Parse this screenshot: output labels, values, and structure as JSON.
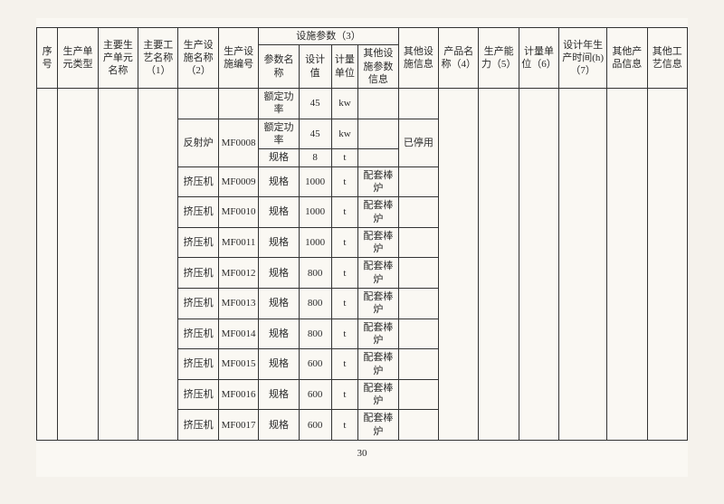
{
  "page_number": "30",
  "header": {
    "group_title": "设施参数（3）",
    "cols": [
      "序号",
      "生产单元类型",
      "主要生产单元名称",
      "主要工艺名称（1）",
      "生产设施名称（2）",
      "生产设施编号",
      "参数名称",
      "设计值",
      "计量单位",
      "其他设施参数信息",
      "其他设施信息",
      "产品名称（4）",
      "生产能力（5）",
      "计量单位（6）",
      "设计年生产时间(h)（7）",
      "其他产品信息",
      "其他工艺信息"
    ]
  },
  "rows": [
    {
      "facility": "",
      "code": "",
      "param": "额定功率",
      "value": "45",
      "unit": "kw",
      "pinfo": "",
      "other": ""
    },
    {
      "facility": "反射炉",
      "code": "MF0008",
      "param": "额定功率",
      "value": "45",
      "unit": "kw",
      "pinfo": "",
      "other": "已停用",
      "fac_rowspan": 2,
      "code_rowspan": 2,
      "other_rowspan": 2
    },
    {
      "facility": null,
      "code": null,
      "param": "规格",
      "value": "8",
      "unit": "t",
      "pinfo": "",
      "other": null
    },
    {
      "facility": "挤压机",
      "code": "MF0009",
      "param": "规格",
      "value": "1000",
      "unit": "t",
      "pinfo": "配套棒炉",
      "other": ""
    },
    {
      "facility": "挤压机",
      "code": "MF0010",
      "param": "规格",
      "value": "1000",
      "unit": "t",
      "pinfo": "配套棒炉",
      "other": ""
    },
    {
      "facility": "挤压机",
      "code": "MF0011",
      "param": "规格",
      "value": "1000",
      "unit": "t",
      "pinfo": "配套棒炉",
      "other": ""
    },
    {
      "facility": "挤压机",
      "code": "MF0012",
      "param": "规格",
      "value": "800",
      "unit": "t",
      "pinfo": "配套棒炉",
      "other": ""
    },
    {
      "facility": "挤压机",
      "code": "MF0013",
      "param": "规格",
      "value": "800",
      "unit": "t",
      "pinfo": "配套棒炉",
      "other": ""
    },
    {
      "facility": "挤压机",
      "code": "MF0014",
      "param": "规格",
      "value": "800",
      "unit": "t",
      "pinfo": "配套棒炉",
      "other": ""
    },
    {
      "facility": "挤压机",
      "code": "MF0015",
      "param": "规格",
      "value": "600",
      "unit": "t",
      "pinfo": "配套棒炉",
      "other": ""
    },
    {
      "facility": "挤压机",
      "code": "MF0016",
      "param": "规格",
      "value": "600",
      "unit": "t",
      "pinfo": "配套棒炉",
      "other": ""
    },
    {
      "facility": "挤压机",
      "code": "MF0017",
      "param": "规格",
      "value": "600",
      "unit": "t",
      "pinfo": "配套棒炉",
      "other": ""
    }
  ]
}
